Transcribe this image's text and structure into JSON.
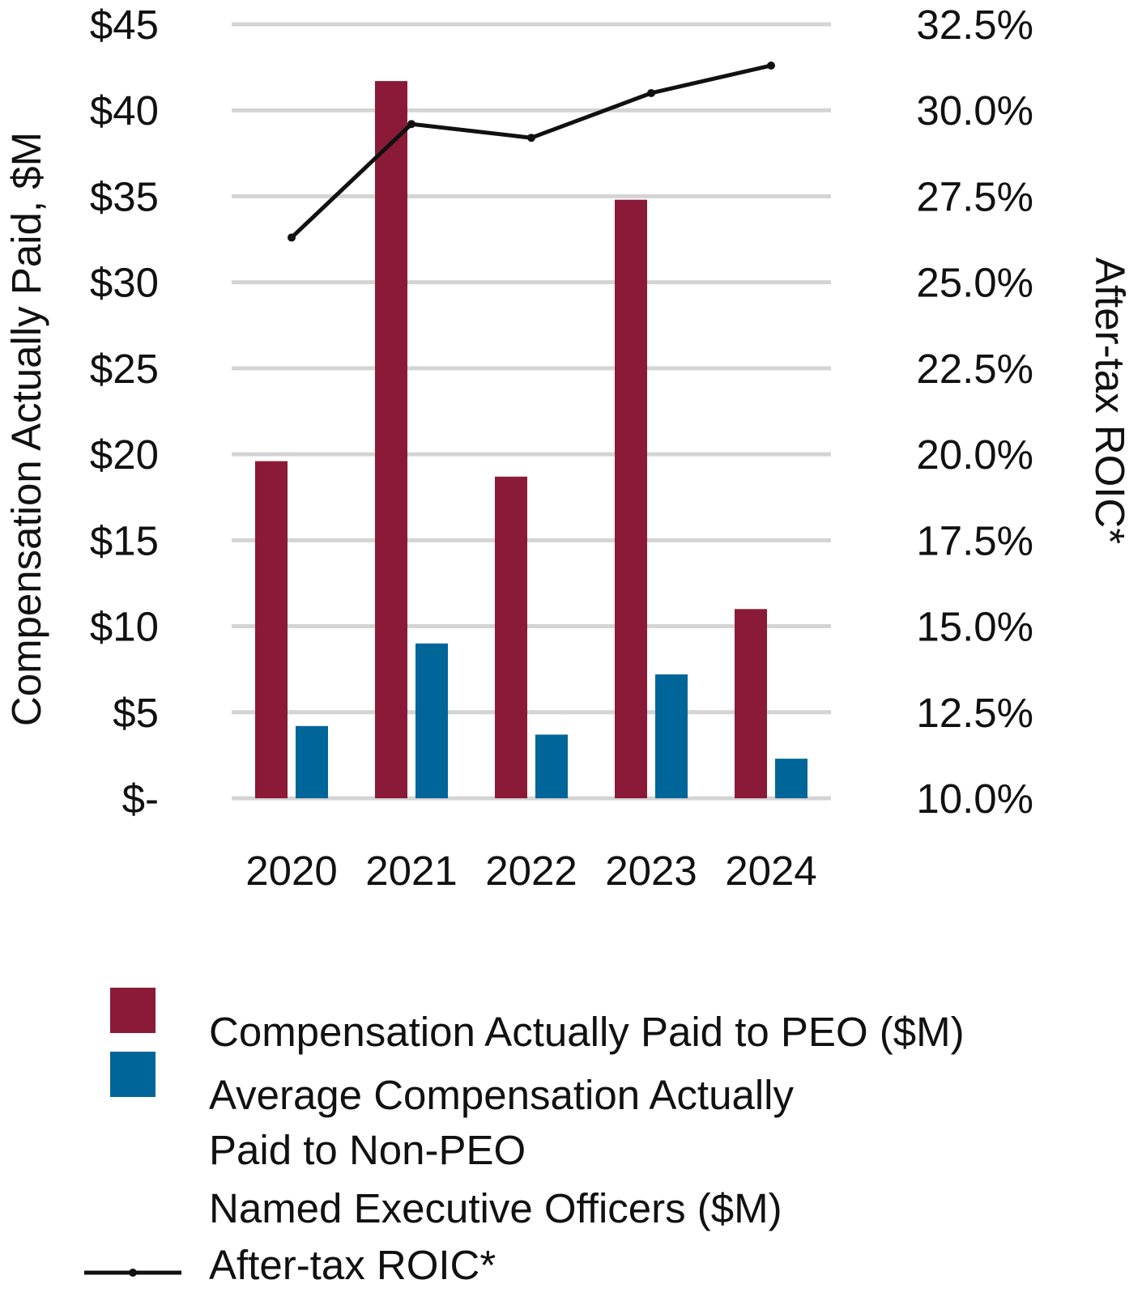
{
  "chart_data": {
    "type": "bar",
    "categories": [
      "2020",
      "2021",
      "2022",
      "2023",
      "2024"
    ],
    "series": [
      {
        "name": "Compensation Actually Paid to PEO ($M)",
        "type": "bar",
        "axis": "left",
        "color": "#8b1a38",
        "values": [
          19.6,
          41.7,
          18.7,
          34.8,
          11.0
        ]
      },
      {
        "name": "Average Compensation Actually Paid to Non-PEO Named Executive Officers ($M)",
        "type": "bar",
        "axis": "left",
        "color": "#006699",
        "values": [
          4.2,
          9.0,
          3.7,
          7.2,
          2.3
        ]
      },
      {
        "name": "After-tax ROIC*",
        "type": "line",
        "axis": "right",
        "color": "#111111",
        "values": [
          26.3,
          29.6,
          29.2,
          30.5,
          31.3
        ]
      }
    ],
    "y_left": {
      "label": "Compensation Actually Paid, $M",
      "ylim": [
        0,
        45
      ],
      "ticks": [
        0,
        5,
        10,
        15,
        20,
        25,
        30,
        35,
        40,
        45
      ],
      "tick_labels": [
        "$-",
        "$5",
        "$10",
        "$15",
        "$20",
        "$25",
        "$30",
        "$35",
        "$40",
        "$45"
      ]
    },
    "y_right": {
      "label": "After-tax ROIC*",
      "ylim": [
        10.0,
        32.5
      ],
      "tick_labels": [
        "10.0%",
        "12.5%",
        "15.0%",
        "17.5%",
        "20.0%",
        "22.5%",
        "25.0%",
        "27.5%",
        "30.0%",
        "32.5%"
      ]
    },
    "grid": true,
    "legend": {
      "position": "bottom",
      "entries": [
        {
          "lines": [
            "Compensation Actually Paid to PEO ($M)"
          ],
          "color": "#8b1a38",
          "marker": "square"
        },
        {
          "lines": [
            "Average Compensation Actually",
            "Paid to Non-PEO",
            "Named Executive Officers ($M)"
          ],
          "color": "#006699",
          "marker": "square"
        },
        {
          "lines": [
            "After-tax ROIC*"
          ],
          "color": "#111111",
          "marker": "line"
        }
      ]
    }
  }
}
